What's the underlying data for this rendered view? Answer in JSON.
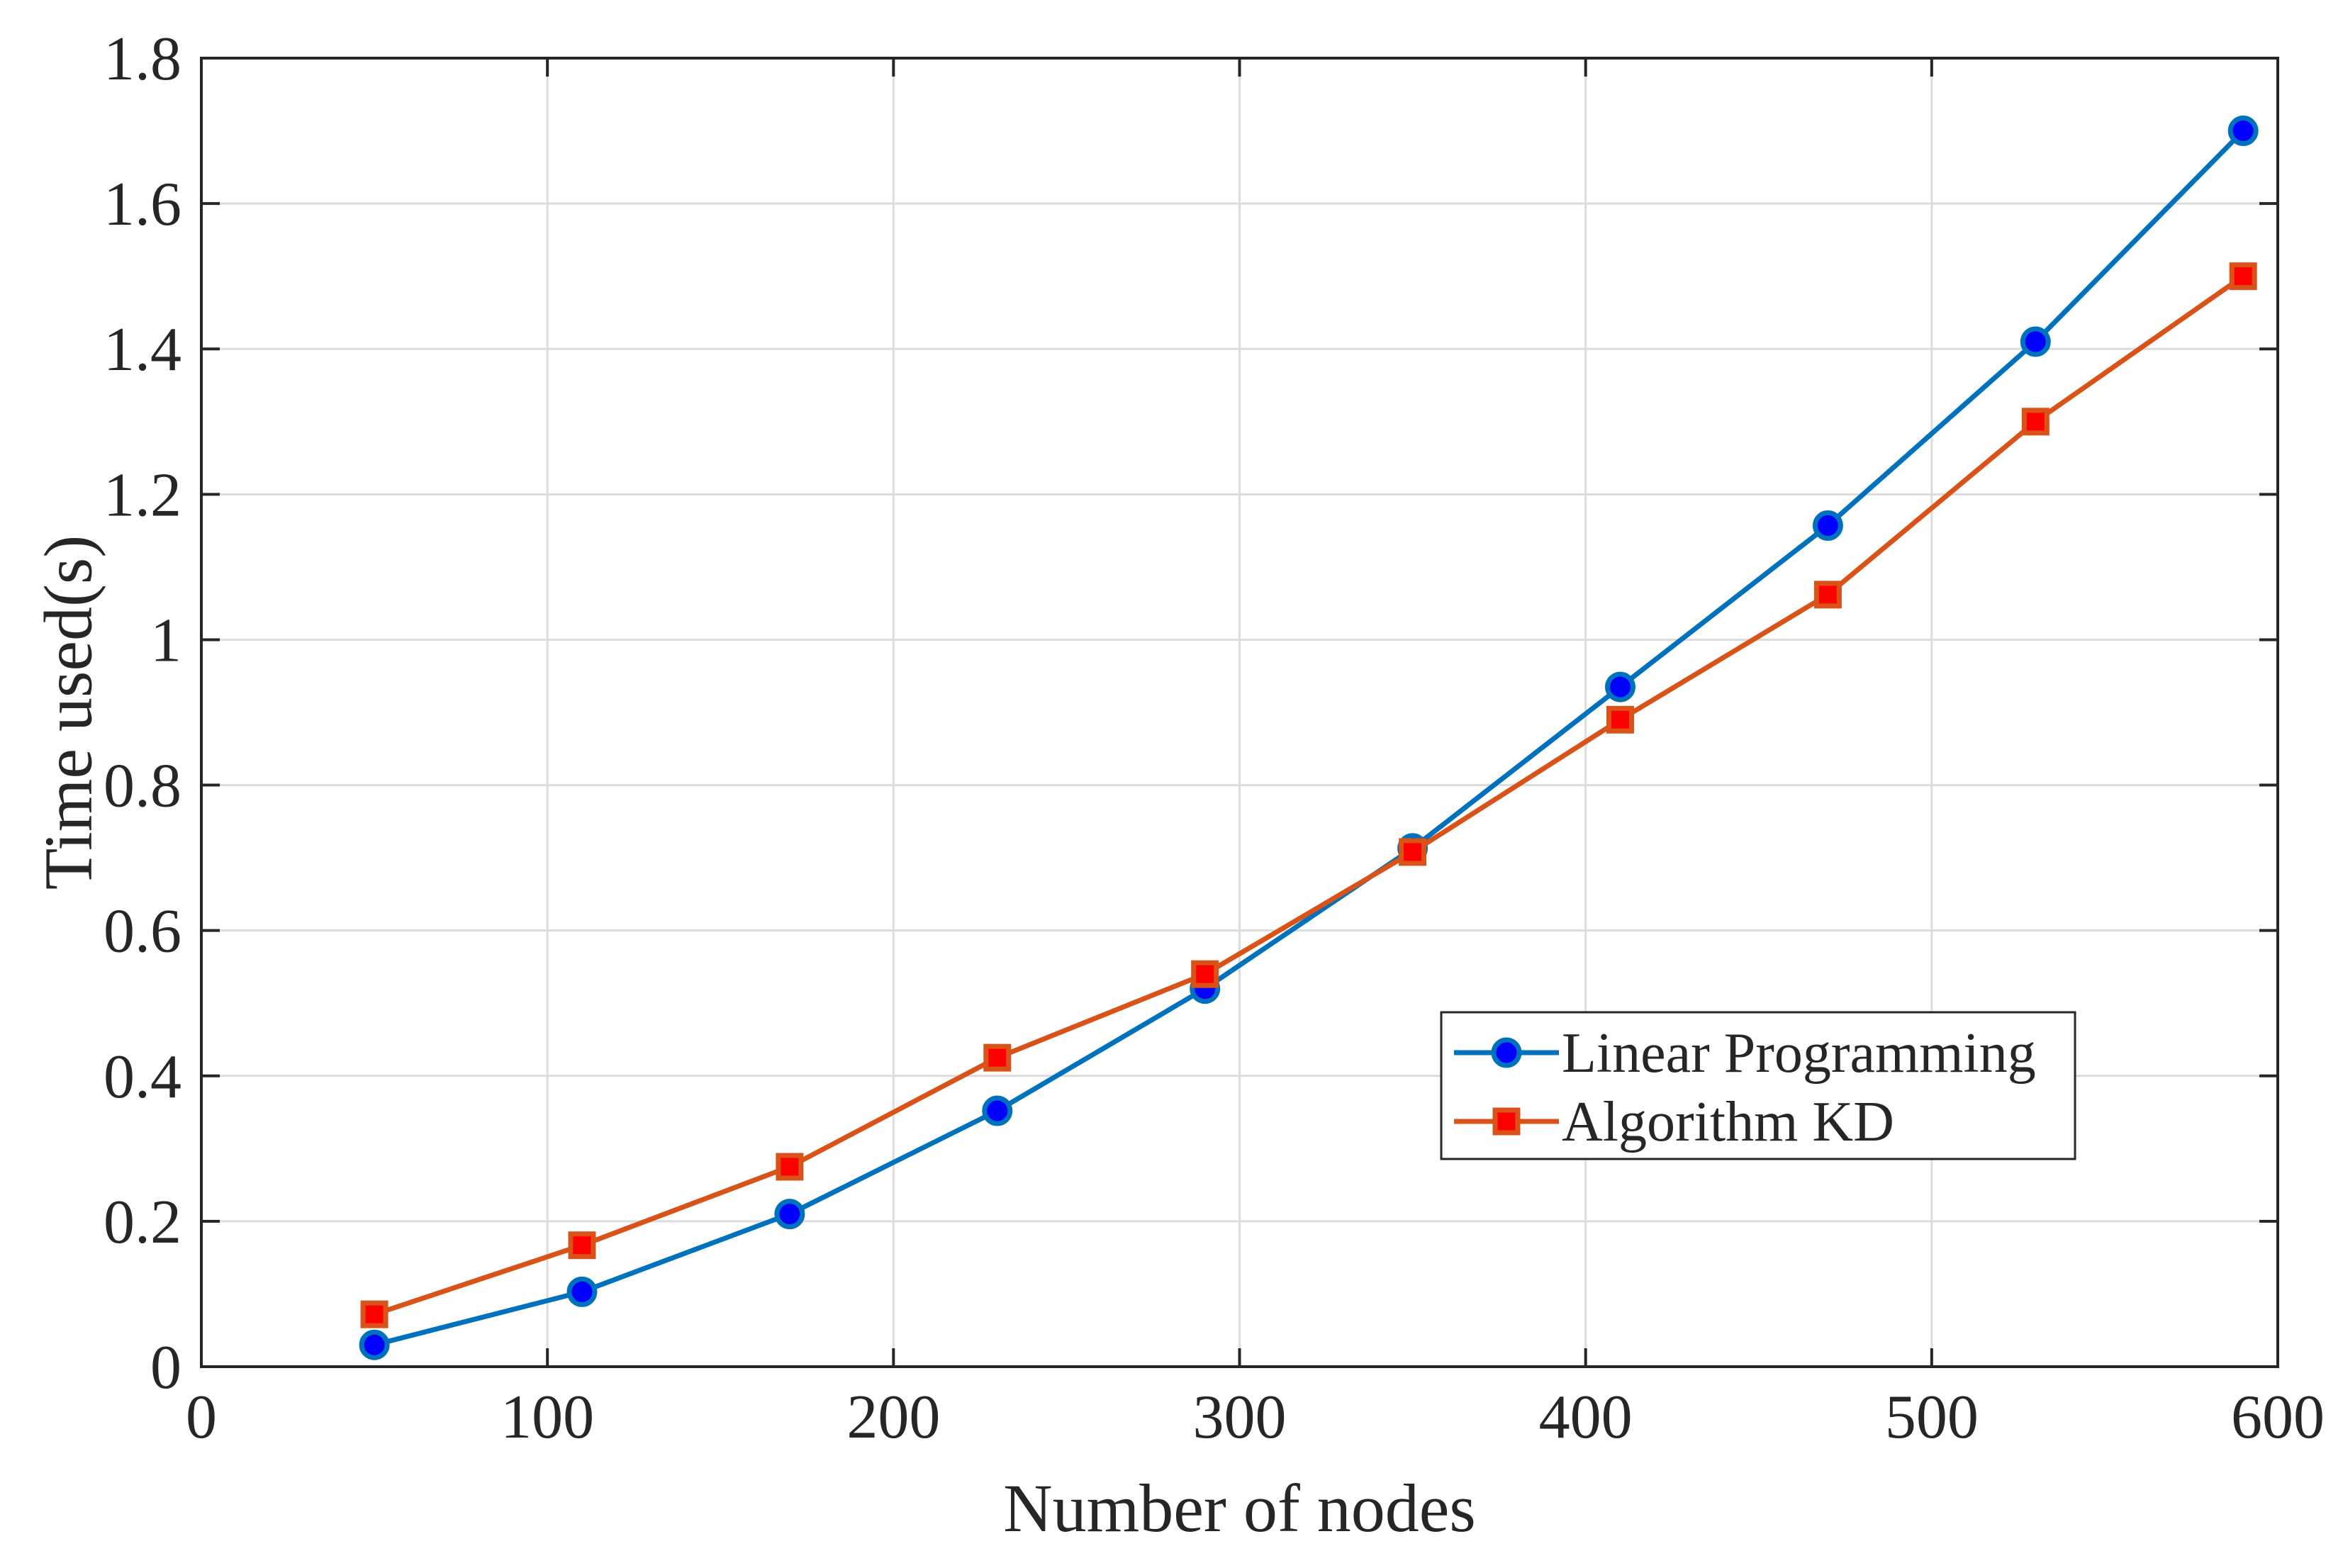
{
  "chart_data": {
    "type": "line",
    "title": "",
    "xlabel": "Number of nodes",
    "ylabel": "Time used(s)",
    "xlim": [
      0,
      600
    ],
    "ylim": [
      0,
      1.8
    ],
    "xticks": [
      0,
      100,
      200,
      300,
      400,
      500,
      600
    ],
    "yticks": [
      0,
      0.2,
      0.4,
      0.6,
      0.8,
      1,
      1.2,
      1.4,
      1.6,
      1.8
    ],
    "xtick_labels": [
      "0",
      "100",
      "200",
      "300",
      "400",
      "500",
      "600"
    ],
    "ytick_labels": [
      "0",
      "0.2",
      "0.4",
      "0.6",
      "0.8",
      "1",
      "1.2",
      "1.4",
      "1.6",
      "1.8"
    ],
    "grid": true,
    "legend_position": "center-right",
    "x": [
      50,
      110,
      170,
      230,
      290,
      350,
      410,
      470,
      530,
      590
    ],
    "series": [
      {
        "name": "Linear Programming",
        "values": [
          0.03,
          0.103,
          0.21,
          0.352,
          0.52,
          0.713,
          0.935,
          1.157,
          1.41,
          1.7
        ],
        "color": "#0072BD",
        "marker": "circle",
        "marker_fill": "#0000ff"
      },
      {
        "name": "Algorithm KD",
        "values": [
          0.072,
          0.167,
          0.275,
          0.425,
          0.54,
          0.708,
          0.89,
          1.062,
          1.3,
          1.5
        ],
        "color": "#D95319",
        "marker": "square",
        "marker_fill": "#ff0000"
      }
    ]
  }
}
